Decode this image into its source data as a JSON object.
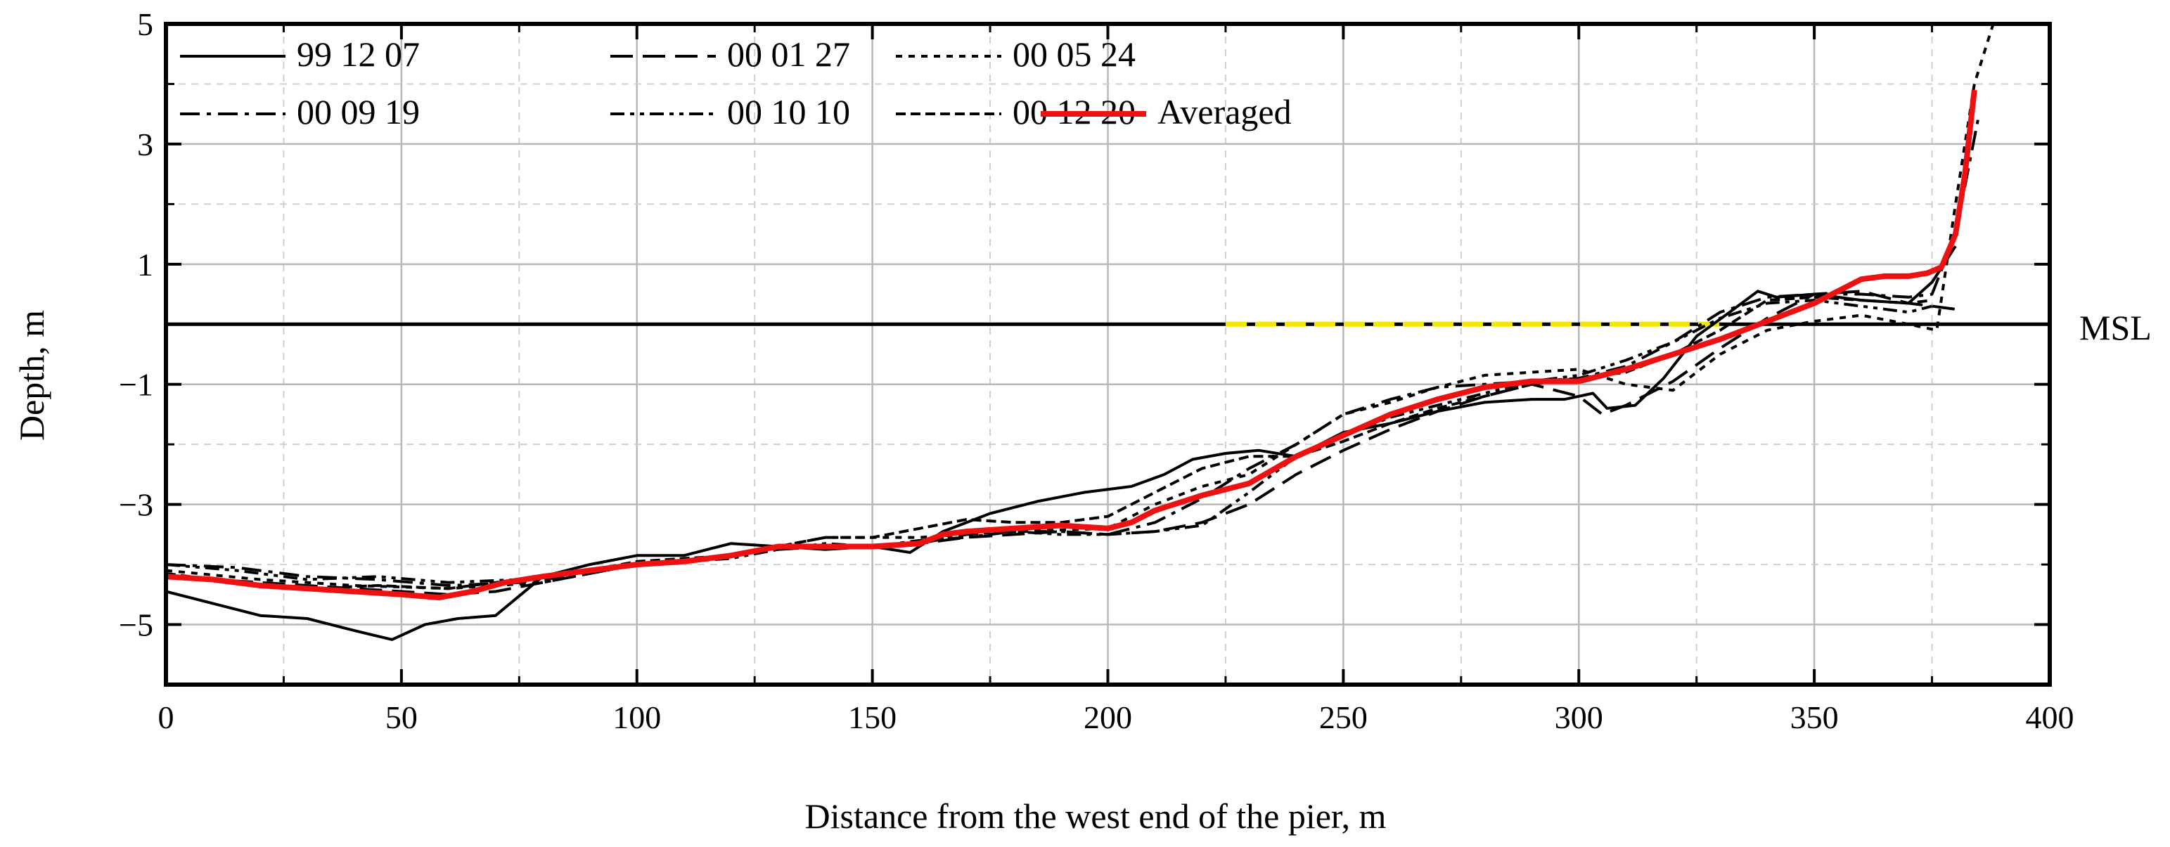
{
  "chart_data": {
    "type": "line",
    "title": "",
    "xlabel": "Distance from the west end of the pier, m",
    "ylabel": "Depth, m",
    "xlim": [
      0,
      400
    ],
    "ylim": [
      -6,
      5
    ],
    "xticks": [
      0,
      50,
      100,
      150,
      200,
      250,
      300,
      350,
      400
    ],
    "yticks": [
      -5,
      -3,
      -1,
      1,
      3,
      5
    ],
    "xtick_labels": [
      "0",
      "50",
      "100",
      "150",
      "200",
      "250",
      "300",
      "350",
      "400"
    ],
    "ytick_labels": [
      "−5",
      "−3",
      "−1",
      "1",
      "3",
      "5"
    ],
    "grid": true,
    "legend_position": "top-left",
    "reference_line": {
      "label": "MSL",
      "y": 0
    },
    "highlight_segment": {
      "x": [
        225,
        330
      ],
      "y": 0,
      "color": "#f2e600"
    },
    "series": [
      {
        "name": "99 12 07",
        "style": "solid",
        "color": "#000000",
        "x": [
          0,
          10,
          20,
          30,
          40,
          48,
          55,
          62,
          70,
          80,
          90,
          100,
          110,
          120,
          130,
          140,
          150,
          158,
          165,
          175,
          185,
          195,
          205,
          212,
          218,
          225,
          232,
          240,
          250,
          260,
          270,
          280,
          290,
          297,
          300,
          303,
          306,
          312,
          318,
          325,
          332,
          338,
          342,
          350,
          360,
          370,
          375,
          380
        ],
        "y": [
          -4.45,
          -4.65,
          -4.85,
          -4.9,
          -5.1,
          -5.25,
          -5.0,
          -4.9,
          -4.85,
          -4.2,
          -4.0,
          -3.85,
          -3.85,
          -3.65,
          -3.7,
          -3.75,
          -3.7,
          -3.8,
          -3.45,
          -3.15,
          -2.95,
          -2.8,
          -2.7,
          -2.5,
          -2.25,
          -2.15,
          -2.1,
          -2.2,
          -1.8,
          -1.65,
          -1.45,
          -1.3,
          -1.25,
          -1.25,
          -1.2,
          -1.15,
          -1.4,
          -1.35,
          -0.9,
          -0.2,
          0.2,
          0.55,
          0.45,
          0.5,
          0.4,
          0.35,
          0.7,
          1.3
        ]
      },
      {
        "name": "00 01 27",
        "style": "dashed",
        "color": "#000000",
        "x": [
          0,
          10,
          20,
          30,
          40,
          50,
          60,
          70,
          80,
          90,
          100,
          110,
          120,
          130,
          140,
          150,
          160,
          170,
          180,
          190,
          200,
          210,
          220,
          230,
          240,
          250,
          260,
          270,
          280,
          290,
          300,
          305,
          310,
          320,
          330,
          340,
          350,
          360,
          370,
          375,
          380
        ],
        "y": [
          -4.2,
          -4.25,
          -4.3,
          -4.35,
          -4.4,
          -4.45,
          -4.5,
          -4.45,
          -4.3,
          -4.15,
          -4.0,
          -3.95,
          -3.85,
          -3.75,
          -3.7,
          -3.7,
          -3.65,
          -3.55,
          -3.5,
          -3.45,
          -3.5,
          -3.45,
          -3.3,
          -3.0,
          -2.5,
          -2.1,
          -1.75,
          -1.45,
          -1.2,
          -1.0,
          -1.2,
          -1.5,
          -1.35,
          -0.95,
          -0.4,
          0.1,
          0.5,
          0.55,
          0.35,
          0.3,
          0.25
        ]
      },
      {
        "name": "00 05 24",
        "style": "dotted",
        "color": "#000000",
        "x": [
          0,
          20,
          40,
          60,
          80,
          100,
          120,
          140,
          160,
          180,
          200,
          210,
          220,
          230,
          240,
          250,
          260,
          270,
          280,
          290,
          300,
          310,
          320,
          330,
          340,
          350,
          360,
          370,
          376,
          380,
          384,
          388
        ],
        "y": [
          -4.1,
          -4.25,
          -4.35,
          -4.4,
          -4.3,
          -4.0,
          -3.85,
          -3.55,
          -3.55,
          -3.45,
          -3.4,
          -3.0,
          -2.7,
          -2.5,
          -2.0,
          -1.5,
          -1.3,
          -1.05,
          -0.85,
          -0.8,
          -0.75,
          -1.0,
          -1.1,
          -0.5,
          -0.1,
          0.05,
          0.15,
          0.0,
          -0.1,
          2.0,
          4.0,
          5.0
        ]
      },
      {
        "name": "00 09 19",
        "style": "dashdot",
        "color": "#000000",
        "x": [
          0,
          15,
          30,
          45,
          60,
          75,
          90,
          100,
          110,
          120,
          130,
          140,
          150,
          160,
          170,
          180,
          190,
          200,
          210,
          220,
          230,
          240,
          250,
          260,
          270,
          280,
          290,
          300,
          310,
          320,
          330,
          340,
          350,
          360,
          370,
          375,
          380,
          385
        ],
        "y": [
          -4.0,
          -4.05,
          -4.2,
          -4.25,
          -4.35,
          -4.3,
          -4.15,
          -4.0,
          -3.95,
          -3.85,
          -3.7,
          -3.7,
          -3.7,
          -3.65,
          -3.5,
          -3.45,
          -3.45,
          -3.5,
          -3.3,
          -2.9,
          -2.4,
          -2.0,
          -1.5,
          -1.25,
          -1.05,
          -1.0,
          -0.95,
          -0.9,
          -0.7,
          -0.3,
          0.2,
          0.45,
          0.5,
          0.5,
          0.45,
          0.5,
          1.5,
          3.5
        ]
      },
      {
        "name": "00 10 10",
        "style": "dashdotdot",
        "color": "#000000",
        "x": [
          0,
          15,
          30,
          45,
          60,
          75,
          90,
          100,
          110,
          120,
          130,
          140,
          150,
          160,
          170,
          180,
          190,
          200,
          210,
          220,
          230,
          240,
          250,
          260,
          270,
          280,
          290,
          300,
          310,
          320,
          330,
          340,
          350,
          360,
          370,
          375
        ],
        "y": [
          -4.0,
          -4.1,
          -4.25,
          -4.2,
          -4.3,
          -4.25,
          -4.1,
          -4.0,
          -3.95,
          -3.9,
          -3.75,
          -3.65,
          -3.7,
          -3.6,
          -3.55,
          -3.45,
          -3.5,
          -3.5,
          -3.45,
          -3.35,
          -2.8,
          -2.2,
          -1.85,
          -1.55,
          -1.35,
          -1.15,
          -0.95,
          -0.85,
          -0.6,
          -0.3,
          0.1,
          0.35,
          0.4,
          0.3,
          0.2,
          0.3
        ]
      },
      {
        "name": "00 12 20",
        "style": "shortdash",
        "color": "#000000",
        "x": [
          0,
          15,
          30,
          45,
          60,
          75,
          90,
          100,
          110,
          120,
          130,
          140,
          150,
          160,
          170,
          180,
          190,
          200,
          210,
          220,
          230,
          240,
          250,
          260,
          270,
          280,
          290,
          300,
          310,
          320,
          330,
          340,
          350,
          360,
          370,
          375
        ],
        "y": [
          -4.15,
          -4.3,
          -4.4,
          -4.35,
          -4.4,
          -4.25,
          -4.1,
          -3.95,
          -3.9,
          -3.85,
          -3.7,
          -3.55,
          -3.55,
          -3.4,
          -3.25,
          -3.3,
          -3.3,
          -3.2,
          -2.8,
          -2.4,
          -2.2,
          -2.2,
          -1.95,
          -1.65,
          -1.4,
          -1.2,
          -1.0,
          -0.9,
          -0.8,
          -0.5,
          -0.1,
          0.4,
          0.45,
          0.4,
          0.35,
          0.4
        ]
      },
      {
        "name": "Averaged",
        "style": "solid-bold",
        "color": "#ee1111",
        "x": [
          0,
          10,
          20,
          30,
          40,
          50,
          58,
          65,
          72,
          80,
          90,
          100,
          110,
          120,
          130,
          140,
          150,
          160,
          165,
          170,
          180,
          190,
          200,
          205,
          210,
          220,
          230,
          240,
          250,
          260,
          270,
          280,
          290,
          300,
          310,
          320,
          330,
          340,
          350,
          355,
          360,
          365,
          370,
          374,
          377,
          380,
          382,
          384
        ],
        "y": [
          -4.2,
          -4.25,
          -4.35,
          -4.4,
          -4.45,
          -4.5,
          -4.55,
          -4.45,
          -4.3,
          -4.2,
          -4.1,
          -4.0,
          -3.95,
          -3.85,
          -3.7,
          -3.7,
          -3.7,
          -3.65,
          -3.5,
          -3.45,
          -3.4,
          -3.35,
          -3.4,
          -3.3,
          -3.1,
          -2.85,
          -2.65,
          -2.2,
          -1.85,
          -1.5,
          -1.25,
          -1.05,
          -0.95,
          -0.95,
          -0.75,
          -0.5,
          -0.25,
          0.05,
          0.35,
          0.55,
          0.75,
          0.8,
          0.8,
          0.85,
          0.95,
          1.5,
          2.5,
          3.9
        ]
      }
    ]
  }
}
